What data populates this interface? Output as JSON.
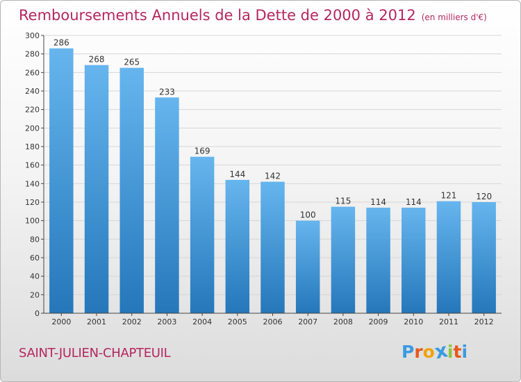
{
  "header": {
    "title": "Remboursements Annuels de la Dette de 2000 à 2012",
    "unit": "(en milliers d'€)"
  },
  "footer": {
    "city": "SAINT-JULIEN-CHAPTEUIL",
    "logo": [
      "P",
      "r",
      "o",
      "x",
      "i",
      "t",
      "i"
    ]
  },
  "colors": {
    "bar_top": "#66b5ee",
    "bar_bottom": "#2577ba",
    "title": "#b4265d",
    "logo": [
      "#3a9be0",
      "#e8581b",
      "#f0a30a",
      "#3a9be0",
      "#8dc63f",
      "#e8581b",
      "#3a9be0"
    ]
  },
  "chart_data": {
    "type": "bar",
    "categories": [
      "2000",
      "2001",
      "2002",
      "2003",
      "2004",
      "2005",
      "2006",
      "2007",
      "2008",
      "2009",
      "2010",
      "2011",
      "2012"
    ],
    "values": [
      286,
      268,
      265,
      233,
      169,
      144,
      142,
      100,
      115,
      114,
      114,
      121,
      120
    ],
    "title": "Remboursements Annuels de la Dette de 2000 à 2012",
    "xlabel": "",
    "ylabel": "",
    "ylim": [
      0,
      300
    ],
    "yticks": [
      0,
      20,
      40,
      60,
      80,
      100,
      120,
      140,
      160,
      180,
      200,
      220,
      240,
      260,
      280,
      300
    ],
    "grid": true,
    "legend": "none"
  }
}
